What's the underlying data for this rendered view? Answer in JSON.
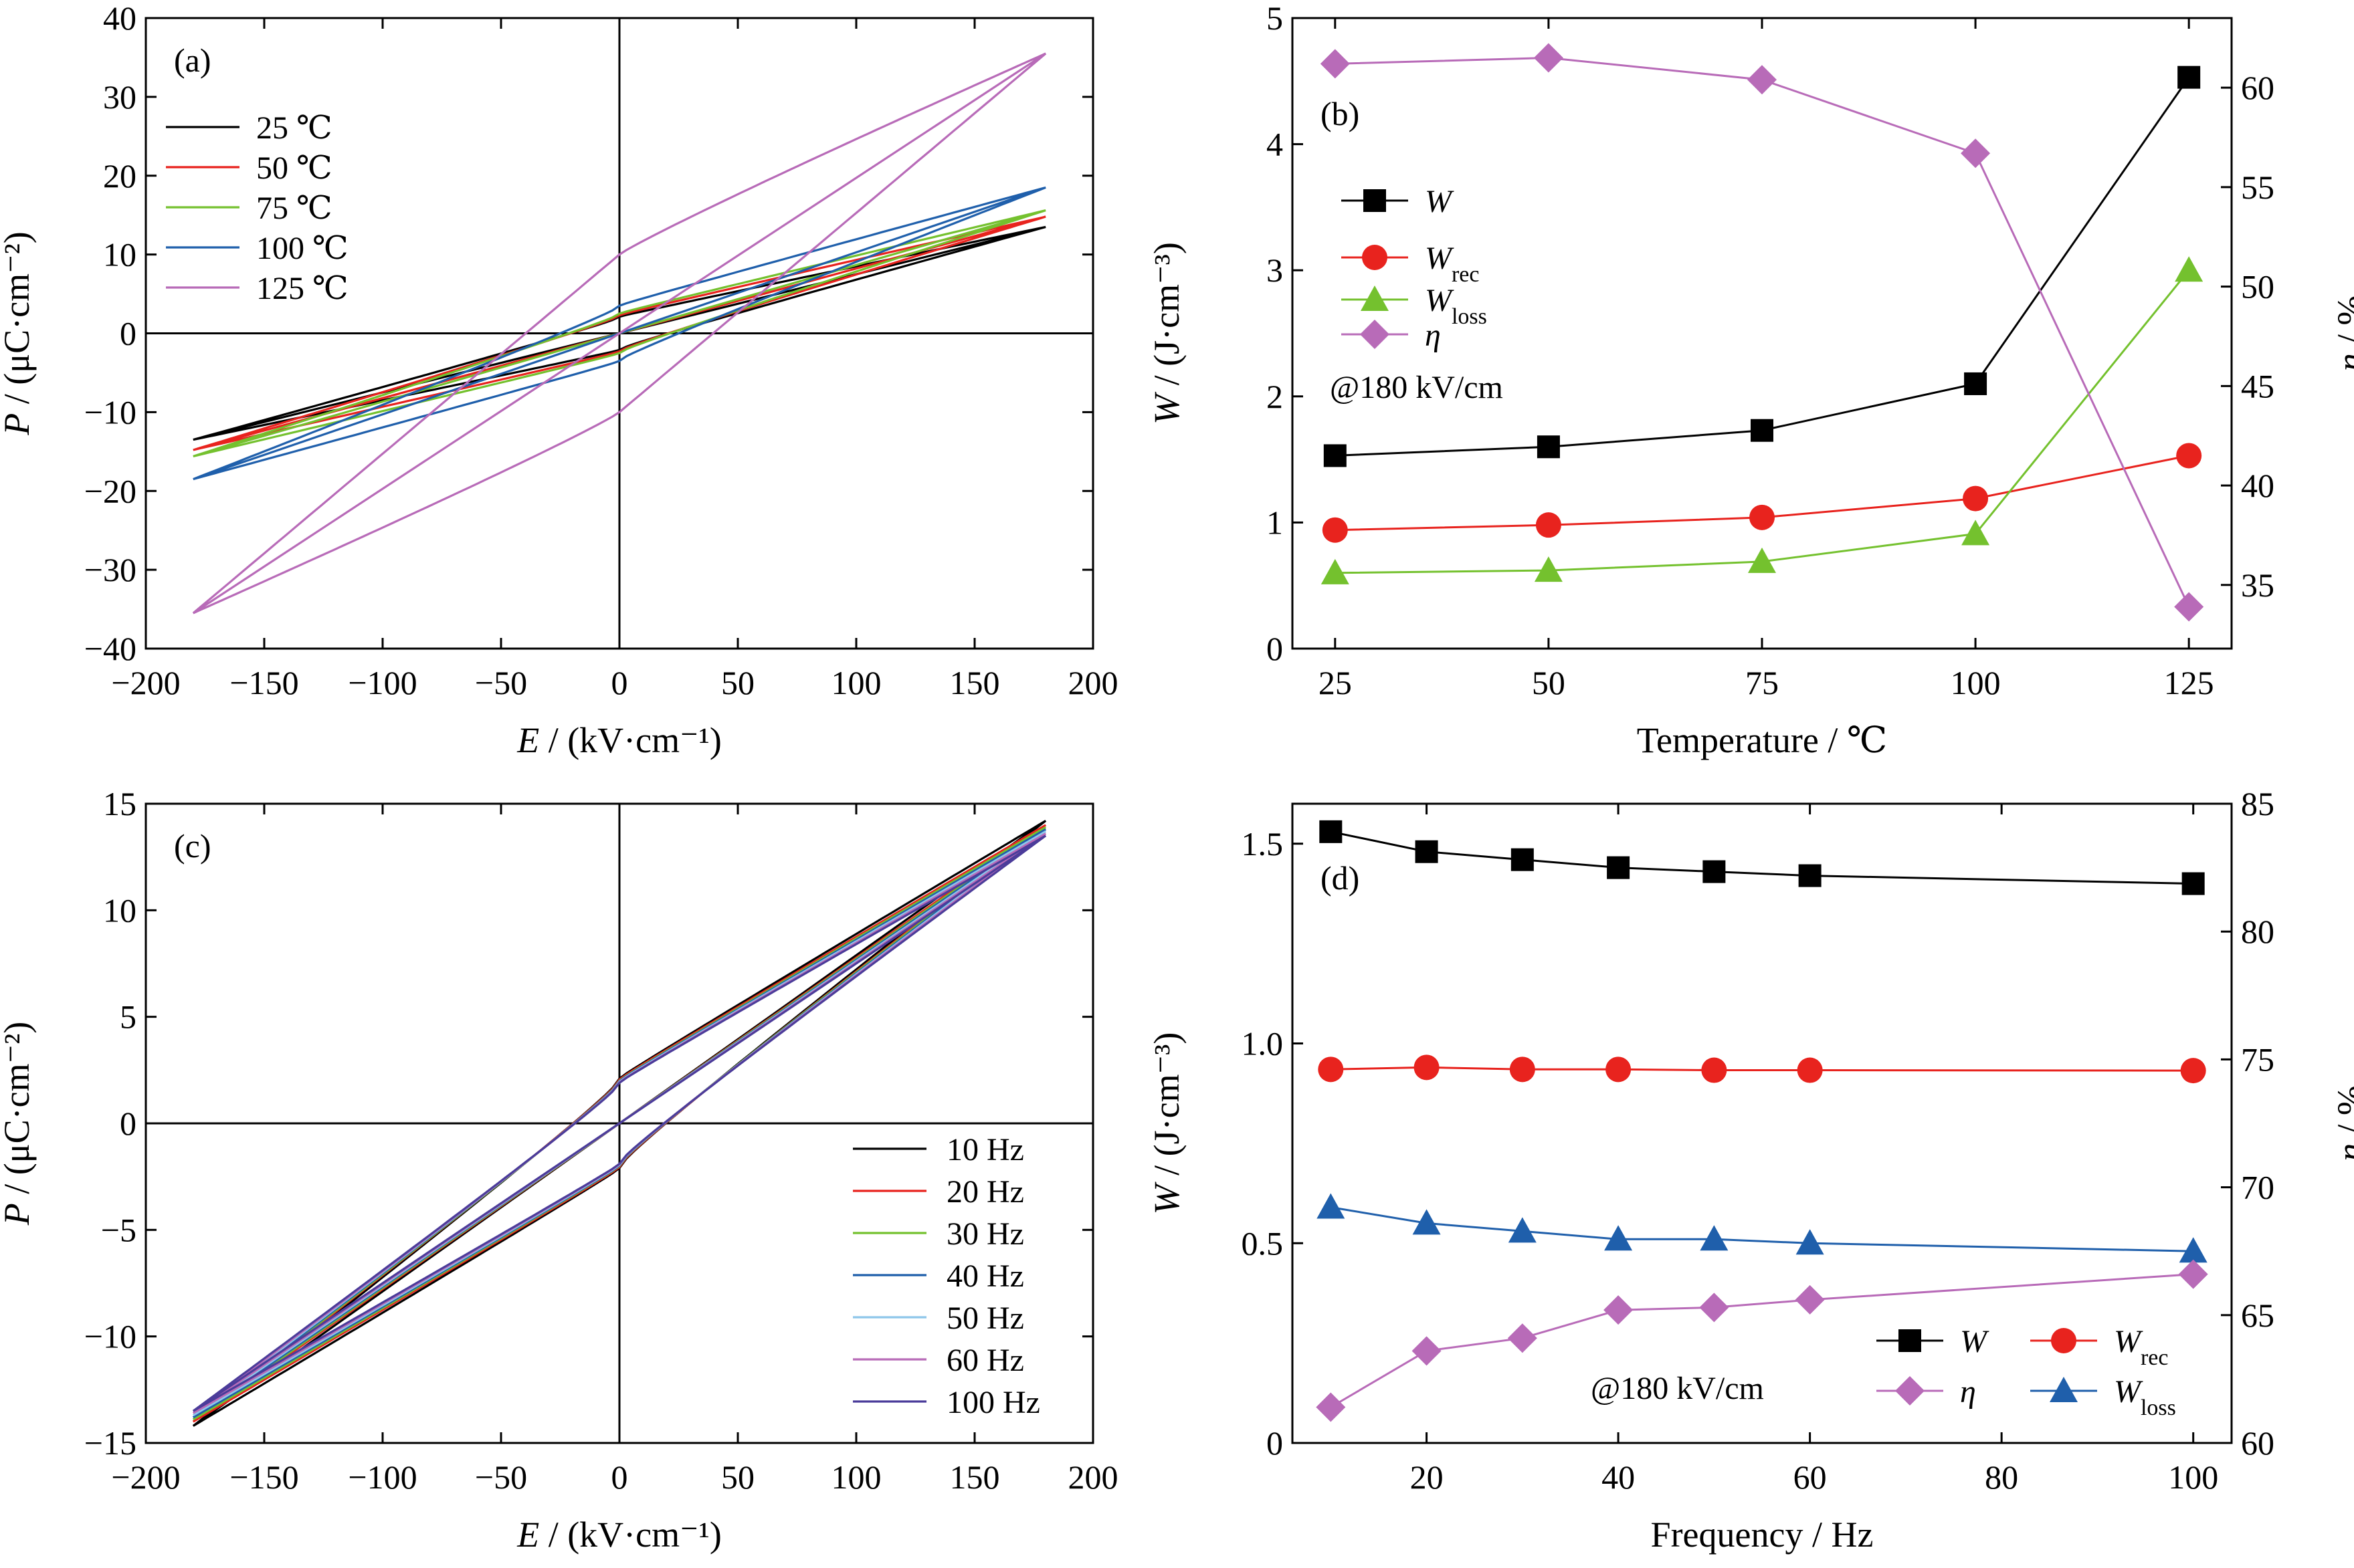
{
  "chart_data": [
    {
      "panel": "(a)",
      "type": "line",
      "xlabel": "E / (kV·cm⁻¹)",
      "ylabel": "P / (μC·cm⁻²)",
      "xlim": [
        -200,
        200
      ],
      "ylim": [
        -40,
        40
      ],
      "xticks": [
        -200,
        -150,
        -100,
        -50,
        0,
        50,
        100,
        150,
        200
      ],
      "yticks": [
        -40,
        -30,
        -20,
        -10,
        0,
        10,
        20,
        30,
        40
      ],
      "xtick_labels": [
        "−200",
        "−150",
        "−100",
        "−50",
        "0",
        "50",
        "100",
        "150",
        "200"
      ],
      "ytick_labels": [
        "−40",
        "−30",
        "−20",
        "−10",
        "0",
        "10",
        "20",
        "30",
        "40"
      ],
      "legend_position": "upper-left",
      "series": [
        {
          "name": "25 ℃",
          "color": "#000000",
          "emax": 180,
          "pmax": 13.5,
          "pr": 2.1,
          "slope": 0.065,
          "a1": 0.03,
          "b1": 0.45,
          "a2": 0.09,
          "b2": 0.45
        },
        {
          "name": "50 ℃",
          "color": "#e8231e",
          "emax": 180,
          "pmax": 14.8,
          "pr": 2.3,
          "slope": 0.069,
          "a1": 0.034,
          "b1": 0.45,
          "a2": 0.096,
          "b2": 0.45
        },
        {
          "name": "75 ℃",
          "color": "#74c12e",
          "emax": 180,
          "pmax": 15.6,
          "pr": 2.5,
          "slope": 0.075,
          "a1": 0.04,
          "b1": 0.45,
          "a2": 0.105,
          "b2": 0.45
        },
        {
          "name": "100 ℃",
          "color": "#1f5fab",
          "emax": 180,
          "pmax": 18.5,
          "pr": 3.5,
          "slope": 0.087,
          "a1": 0.05,
          "b1": 0.45,
          "a2": 0.12,
          "b2": 0.45
        },
        {
          "name": "125 ℃",
          "color": "#b86bb8",
          "emax": 180,
          "pmax": 35.5,
          "pr": 10.0,
          "slope": 0.095,
          "a1": 0.1,
          "b1": 0.8,
          "a2": 0.06,
          "b2": 1.0
        }
      ]
    },
    {
      "panel": "(b)",
      "type": "line",
      "xlabel": "Temperature / ℃",
      "ylabel": "W / (J·cm⁻³)",
      "ylabel2": "η / %",
      "x": [
        25,
        50,
        75,
        100,
        125
      ],
      "xlim": [
        20,
        130
      ],
      "ylim": [
        0,
        5
      ],
      "y2lim": [
        31.8,
        63.5
      ],
      "xticks": [
        25,
        50,
        75,
        100,
        125
      ],
      "yticks": [
        0,
        1,
        2,
        3,
        4,
        5
      ],
      "y2ticks": [
        35,
        40,
        45,
        50,
        55,
        60
      ],
      "annotation": "@180 kV/cm",
      "legend_position": "upper-left",
      "series": [
        {
          "name": "W",
          "name_sub": "",
          "marker": "square",
          "color": "#000000",
          "axis": "left",
          "values": [
            1.53,
            1.6,
            1.73,
            2.1,
            4.53
          ]
        },
        {
          "name": "W",
          "name_sub": "rec",
          "marker": "circle",
          "color": "#e8231e",
          "axis": "left",
          "values": [
            0.94,
            0.98,
            1.04,
            1.19,
            1.53
          ]
        },
        {
          "name": "W",
          "name_sub": "loss",
          "marker": "triangle",
          "color": "#74c12e",
          "axis": "left",
          "values": [
            0.6,
            0.62,
            0.69,
            0.91,
            3.0
          ]
        },
        {
          "name": "η",
          "name_sub": "",
          "marker": "diamond",
          "color": "#b86bb8",
          "axis": "right",
          "values": [
            61.2,
            61.5,
            60.4,
            56.7,
            33.9
          ]
        }
      ]
    },
    {
      "panel": "(c)",
      "type": "line",
      "xlabel": "E / (kV·cm⁻¹)",
      "ylabel": "P / (μC·cm⁻²)",
      "xlim": [
        -200,
        200
      ],
      "ylim": [
        -15,
        15
      ],
      "xticks": [
        -200,
        -150,
        -100,
        -50,
        0,
        50,
        100,
        150,
        200
      ],
      "yticks": [
        -15,
        -10,
        -5,
        0,
        5,
        10,
        15
      ],
      "xtick_labels": [
        "−200",
        "−150",
        "−100",
        "−50",
        "0",
        "50",
        "100",
        "150",
        "200"
      ],
      "ytick_labels": [
        "−15",
        "−10",
        "−5",
        "0",
        "5",
        "10",
        "15"
      ],
      "legend_position": "lower-right",
      "series": [
        {
          "name": "10 Hz",
          "color": "#000000",
          "emax": 180,
          "pmax": 14.2,
          "pr": 2.1,
          "slope": 0.065,
          "a1": 0.03,
          "b1": 0.45,
          "a2": 0.095,
          "b2": 0.45
        },
        {
          "name": "20 Hz",
          "color": "#e8231e",
          "emax": 180,
          "pmax": 14.0,
          "pr": 2.05,
          "slope": 0.065,
          "a1": 0.03,
          "b1": 0.45,
          "a2": 0.094,
          "b2": 0.45
        },
        {
          "name": "30 Hz",
          "color": "#74c12e",
          "emax": 180,
          "pmax": 13.9,
          "pr": 2.0,
          "slope": 0.065,
          "a1": 0.03,
          "b1": 0.45,
          "a2": 0.093,
          "b2": 0.45
        },
        {
          "name": "40 Hz",
          "color": "#1f5fab",
          "emax": 180,
          "pmax": 13.8,
          "pr": 1.98,
          "slope": 0.065,
          "a1": 0.03,
          "b1": 0.45,
          "a2": 0.093,
          "b2": 0.45
        },
        {
          "name": "50 Hz",
          "color": "#8ec6ea",
          "emax": 180,
          "pmax": 13.7,
          "pr": 1.95,
          "slope": 0.065,
          "a1": 0.03,
          "b1": 0.45,
          "a2": 0.092,
          "b2": 0.45
        },
        {
          "name": "60 Hz",
          "color": "#b86bb8",
          "emax": 180,
          "pmax": 13.6,
          "pr": 1.92,
          "slope": 0.065,
          "a1": 0.03,
          "b1": 0.45,
          "a2": 0.092,
          "b2": 0.45
        },
        {
          "name": "100 Hz",
          "color": "#4b3c9a",
          "emax": 180,
          "pmax": 13.5,
          "pr": 1.9,
          "slope": 0.065,
          "a1": 0.03,
          "b1": 0.45,
          "a2": 0.091,
          "b2": 0.45
        }
      ]
    },
    {
      "panel": "(d)",
      "type": "line",
      "xlabel": "Frequency / Hz",
      "ylabel": "W / (J·cm⁻³)",
      "ylabel2": "η / %",
      "x": [
        10,
        20,
        30,
        40,
        50,
        60,
        100
      ],
      "xlim": [
        6,
        104
      ],
      "ylim": [
        0,
        1.6
      ],
      "y2lim": [
        60,
        85
      ],
      "xticks": [
        20,
        40,
        60,
        80,
        100
      ],
      "yticks": [
        0,
        0.5,
        1.0,
        1.5
      ],
      "ytick_labels": [
        "0",
        "0.5",
        "1.0",
        "1.5"
      ],
      "y2ticks": [
        60,
        65,
        70,
        75,
        80,
        85
      ],
      "annotation": "@180 kV/cm",
      "legend_position": "lower-right",
      "series": [
        {
          "name": "W",
          "name_sub": "",
          "marker": "square",
          "color": "#000000",
          "axis": "left",
          "values": [
            1.53,
            1.48,
            1.46,
            1.44,
            1.43,
            1.42,
            1.4
          ]
        },
        {
          "name": "W",
          "name_sub": "rec",
          "marker": "circle",
          "color": "#e8231e",
          "axis": "left",
          "values": [
            0.935,
            0.94,
            0.935,
            0.935,
            0.933,
            0.933,
            0.932
          ]
        },
        {
          "name": "W",
          "name_sub": "loss",
          "marker": "triangle",
          "color": "#1f5fab",
          "axis": "left",
          "values": [
            0.59,
            0.55,
            0.53,
            0.51,
            0.51,
            0.5,
            0.48
          ]
        },
        {
          "name": "η",
          "name_sub": "",
          "marker": "diamond",
          "color": "#b86bb8",
          "axis": "right",
          "values": [
            61.4,
            63.6,
            64.1,
            65.2,
            65.3,
            65.6,
            66.6
          ]
        }
      ]
    }
  ]
}
